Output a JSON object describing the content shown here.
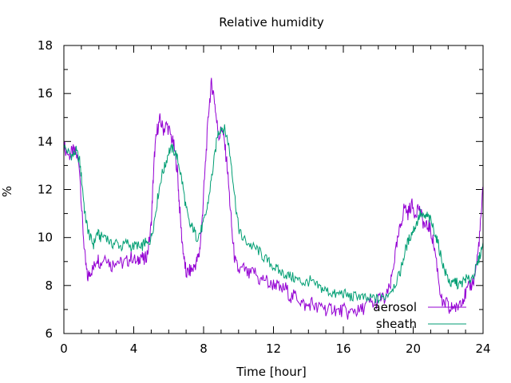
{
  "chart_data": {
    "type": "line",
    "title": "Relative humidity",
    "xlabel": "Time [hour]",
    "ylabel": "%",
    "xlim": [
      0,
      24
    ],
    "ylim": [
      6,
      18
    ],
    "xticks": [
      0,
      4,
      8,
      12,
      16,
      20,
      24
    ],
    "xtick_labels": [
      "0",
      "4",
      "8",
      "12",
      "16",
      "20",
      "24"
    ],
    "yticks": [
      6,
      8,
      10,
      12,
      14,
      16,
      18
    ],
    "ytick_labels": [
      "6",
      "8",
      "10",
      "12",
      "14",
      "16",
      "18"
    ],
    "grid": false,
    "legend_position": "bottom-right",
    "series": [
      {
        "name": "aerosol",
        "color": "#9400d3",
        "points": [
          [
            0.0,
            13.8
          ],
          [
            0.3,
            13.4
          ],
          [
            0.5,
            13.6
          ],
          [
            0.7,
            13.5
          ],
          [
            0.9,
            12.9
          ],
          [
            1.05,
            10.8
          ],
          [
            1.2,
            9.2
          ],
          [
            1.35,
            8.3
          ],
          [
            1.5,
            8.6
          ],
          [
            1.7,
            8.7
          ],
          [
            1.9,
            9.2
          ],
          [
            2.1,
            8.9
          ],
          [
            2.4,
            9.3
          ],
          [
            2.7,
            8.8
          ],
          [
            3.0,
            9.1
          ],
          [
            3.3,
            8.9
          ],
          [
            3.6,
            9.0
          ],
          [
            3.9,
            9.2
          ],
          [
            4.2,
            8.9
          ],
          [
            4.4,
            9.3
          ],
          [
            4.6,
            9.0
          ],
          [
            4.8,
            9.4
          ],
          [
            5.0,
            10.5
          ],
          [
            5.1,
            12.2
          ],
          [
            5.2,
            13.6
          ],
          [
            5.35,
            14.5
          ],
          [
            5.5,
            14.9
          ],
          [
            5.7,
            14.5
          ],
          [
            5.9,
            14.7
          ],
          [
            6.1,
            14.3
          ],
          [
            6.3,
            13.8
          ],
          [
            6.5,
            12.8
          ],
          [
            6.6,
            11.5
          ],
          [
            6.75,
            10.0
          ],
          [
            6.9,
            9.0
          ],
          [
            7.0,
            8.5
          ],
          [
            7.2,
            8.6
          ],
          [
            7.4,
            8.7
          ],
          [
            7.6,
            9.0
          ],
          [
            7.75,
            9.3
          ],
          [
            7.9,
            10.5
          ],
          [
            8.0,
            11.8
          ],
          [
            8.15,
            13.6
          ],
          [
            8.3,
            15.4
          ],
          [
            8.45,
            16.4
          ],
          [
            8.6,
            15.9
          ],
          [
            8.75,
            14.8
          ],
          [
            8.9,
            14.2
          ],
          [
            9.05,
            14.6
          ],
          [
            9.2,
            13.9
          ],
          [
            9.35,
            13.0
          ],
          [
            9.5,
            11.5
          ],
          [
            9.65,
            10.0
          ],
          [
            9.8,
            9.0
          ],
          [
            10.0,
            8.6
          ],
          [
            10.3,
            8.7
          ],
          [
            10.6,
            8.4
          ],
          [
            10.9,
            8.6
          ],
          [
            11.2,
            8.2
          ],
          [
            11.5,
            8.3
          ],
          [
            11.8,
            8.0
          ],
          [
            12.1,
            8.1
          ],
          [
            12.4,
            7.8
          ],
          [
            12.7,
            7.9
          ],
          [
            13.0,
            7.5
          ],
          [
            13.3,
            7.6
          ],
          [
            13.6,
            7.3
          ],
          [
            13.9,
            7.1
          ],
          [
            14.2,
            7.3
          ],
          [
            14.5,
            7.0
          ],
          [
            14.8,
            7.2
          ],
          [
            15.1,
            6.9
          ],
          [
            15.4,
            7.1
          ],
          [
            15.7,
            6.9
          ],
          [
            16.0,
            7.0
          ],
          [
            16.3,
            6.8
          ],
          [
            16.6,
            7.0
          ],
          [
            16.9,
            6.9
          ],
          [
            17.2,
            7.1
          ],
          [
            17.5,
            7.3
          ],
          [
            17.8,
            7.2
          ],
          [
            18.1,
            7.5
          ],
          [
            18.4,
            7.4
          ],
          [
            18.7,
            8.0
          ],
          [
            18.9,
            9.0
          ],
          [
            19.1,
            9.8
          ],
          [
            19.3,
            10.6
          ],
          [
            19.5,
            11.3
          ],
          [
            19.7,
            11.0
          ],
          [
            19.9,
            11.4
          ],
          [
            20.1,
            11.0
          ],
          [
            20.3,
            11.3
          ],
          [
            20.5,
            10.8
          ],
          [
            20.7,
            10.4
          ],
          [
            20.9,
            10.5
          ],
          [
            21.1,
            10.0
          ],
          [
            21.3,
            9.2
          ],
          [
            21.5,
            8.0
          ],
          [
            21.7,
            7.1
          ],
          [
            21.9,
            7.3
          ],
          [
            22.1,
            6.9
          ],
          [
            22.3,
            7.2
          ],
          [
            22.5,
            7.0
          ],
          [
            22.7,
            7.4
          ],
          [
            22.9,
            7.5
          ],
          [
            23.1,
            7.8
          ],
          [
            23.3,
            8.0
          ],
          [
            23.5,
            8.3
          ],
          [
            23.7,
            9.3
          ],
          [
            23.85,
            10.5
          ],
          [
            24.0,
            12.1
          ]
        ]
      },
      {
        "name": "sheath",
        "color": "#009e73",
        "points": [
          [
            0.0,
            13.8
          ],
          [
            0.3,
            13.5
          ],
          [
            0.5,
            13.4
          ],
          [
            0.7,
            13.6
          ],
          [
            0.9,
            13.2
          ],
          [
            1.05,
            12.2
          ],
          [
            1.2,
            11.0
          ],
          [
            1.35,
            10.4
          ],
          [
            1.5,
            10.0
          ],
          [
            1.7,
            9.7
          ],
          [
            1.9,
            10.2
          ],
          [
            2.1,
            10.0
          ],
          [
            2.4,
            10.1
          ],
          [
            2.7,
            9.7
          ],
          [
            3.0,
            9.8
          ],
          [
            3.3,
            9.6
          ],
          [
            3.6,
            9.8
          ],
          [
            3.9,
            9.6
          ],
          [
            4.2,
            9.7
          ],
          [
            4.4,
            9.5
          ],
          [
            4.6,
            9.8
          ],
          [
            4.8,
            9.7
          ],
          [
            5.0,
            10.0
          ],
          [
            5.2,
            10.8
          ],
          [
            5.4,
            11.8
          ],
          [
            5.6,
            12.6
          ],
          [
            5.8,
            13.0
          ],
          [
            6.0,
            13.6
          ],
          [
            6.2,
            13.7
          ],
          [
            6.4,
            13.5
          ],
          [
            6.6,
            13.0
          ],
          [
            6.8,
            12.2
          ],
          [
            7.0,
            11.2
          ],
          [
            7.2,
            10.5
          ],
          [
            7.4,
            10.4
          ],
          [
            7.6,
            10.0
          ],
          [
            7.8,
            10.2
          ],
          [
            8.0,
            10.6
          ],
          [
            8.2,
            11.2
          ],
          [
            8.4,
            12.2
          ],
          [
            8.6,
            13.2
          ],
          [
            8.8,
            14.3
          ],
          [
            9.0,
            14.6
          ],
          [
            9.2,
            14.5
          ],
          [
            9.4,
            14.0
          ],
          [
            9.6,
            13.0
          ],
          [
            9.8,
            11.6
          ],
          [
            10.0,
            10.4
          ],
          [
            10.2,
            10.0
          ],
          [
            10.5,
            9.8
          ],
          [
            10.8,
            9.6
          ],
          [
            11.1,
            9.5
          ],
          [
            11.4,
            9.2
          ],
          [
            11.7,
            9.0
          ],
          [
            12.0,
            8.8
          ],
          [
            12.3,
            8.6
          ],
          [
            12.6,
            8.5
          ],
          [
            12.9,
            8.4
          ],
          [
            13.2,
            8.3
          ],
          [
            13.5,
            8.2
          ],
          [
            13.8,
            8.1
          ],
          [
            14.1,
            8.2
          ],
          [
            14.4,
            8.0
          ],
          [
            14.7,
            7.9
          ],
          [
            15.0,
            7.8
          ],
          [
            15.3,
            7.7
          ],
          [
            15.6,
            7.6
          ],
          [
            15.9,
            7.7
          ],
          [
            16.2,
            7.6
          ],
          [
            16.5,
            7.5
          ],
          [
            16.8,
            7.6
          ],
          [
            17.1,
            7.5
          ],
          [
            17.4,
            7.4
          ],
          [
            17.7,
            7.5
          ],
          [
            18.0,
            7.4
          ],
          [
            18.3,
            7.5
          ],
          [
            18.6,
            7.7
          ],
          [
            18.9,
            8.0
          ],
          [
            19.2,
            8.4
          ],
          [
            19.4,
            9.0
          ],
          [
            19.6,
            9.6
          ],
          [
            19.8,
            10.0
          ],
          [
            20.0,
            10.3
          ],
          [
            20.2,
            10.6
          ],
          [
            20.4,
            11.0
          ],
          [
            20.6,
            10.8
          ],
          [
            20.8,
            10.9
          ],
          [
            21.0,
            10.7
          ],
          [
            21.2,
            10.3
          ],
          [
            21.4,
            9.8
          ],
          [
            21.6,
            9.2
          ],
          [
            21.8,
            8.6
          ],
          [
            22.0,
            8.3
          ],
          [
            22.2,
            8.0
          ],
          [
            22.4,
            8.2
          ],
          [
            22.6,
            8.0
          ],
          [
            22.8,
            8.1
          ],
          [
            23.0,
            8.3
          ],
          [
            23.2,
            8.2
          ],
          [
            23.4,
            8.4
          ],
          [
            23.6,
            8.7
          ],
          [
            23.8,
            9.2
          ],
          [
            24.0,
            9.8
          ]
        ]
      }
    ]
  }
}
